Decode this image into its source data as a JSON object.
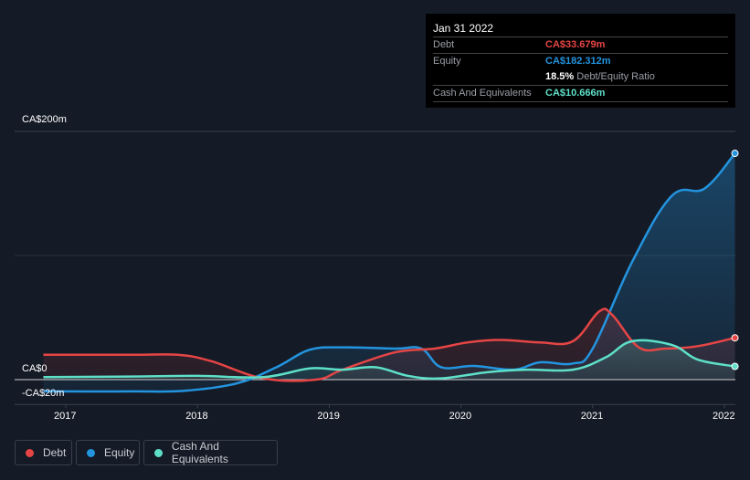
{
  "colors": {
    "debt": "#e64545",
    "equity": "#2394df",
    "cash": "#5ee0c8",
    "grid": "#2a303a",
    "zero": "#cfd3d8"
  },
  "tooltip": {
    "date": "Jan 31 2022",
    "debt_label": "Debt",
    "debt_value": "CA$33.679m",
    "equity_label": "Equity",
    "equity_value": "CA$182.312m",
    "ratio_value": "18.5%",
    "ratio_label": "Debt/Equity Ratio",
    "cash_label": "Cash And Equivalents",
    "cash_value": "CA$10.666m"
  },
  "legend": [
    {
      "label": "Debt",
      "key": "debt"
    },
    {
      "label": "Equity",
      "key": "equity"
    },
    {
      "label": "Cash And Equivalents",
      "key": "cash"
    }
  ],
  "chart_data": {
    "type": "line",
    "title": "",
    "xlabel": "",
    "ylabel": "",
    "ylim": [
      -20,
      200
    ],
    "xlim": [
      2016.83,
      2022.08
    ],
    "y_tick_labels": [
      {
        "value": 200,
        "label": "CA$200m"
      },
      {
        "value": 0,
        "label": "CA$0"
      },
      {
        "value": -20,
        "label": "-CA$20m"
      }
    ],
    "x_ticks": [
      2017,
      2018,
      2019,
      2020,
      2021,
      2022
    ],
    "x_tick_labels": [
      "2017",
      "2018",
      "2019",
      "2020",
      "2021",
      "2022"
    ],
    "series": [
      {
        "name": "Debt",
        "key": "debt",
        "x": [
          2016.83,
          2017.5,
          2017.85,
          2018.1,
          2018.5,
          2018.9,
          2019.1,
          2019.5,
          2019.8,
          2020.05,
          2020.3,
          2020.6,
          2020.85,
          2021.05,
          2021.15,
          2021.35,
          2021.55,
          2021.8,
          2022.08
        ],
        "values": [
          20,
          20,
          20,
          15,
          1,
          0,
          8,
          22,
          25,
          30,
          32,
          30,
          31,
          55,
          52,
          26,
          25,
          27,
          33.679
        ]
      },
      {
        "name": "Equity",
        "key": "equity",
        "x": [
          2016.83,
          2017.5,
          2017.9,
          2018.3,
          2018.6,
          2018.85,
          2019.1,
          2019.5,
          2019.7,
          2019.85,
          2020.1,
          2020.4,
          2020.6,
          2020.85,
          2021.0,
          2021.3,
          2021.6,
          2021.85,
          2022.08
        ],
        "values": [
          -9.5,
          -9.5,
          -9,
          -3,
          10,
          24,
          26,
          25,
          25,
          10,
          11,
          8,
          14,
          13,
          25,
          95,
          148,
          154,
          182.312
        ]
      },
      {
        "name": "Cash And Equivalents",
        "key": "cash",
        "x": [
          2016.83,
          2017.5,
          2018.0,
          2018.5,
          2018.85,
          2019.1,
          2019.35,
          2019.6,
          2019.85,
          2020.2,
          2020.5,
          2020.85,
          2021.1,
          2021.3,
          2021.6,
          2021.8,
          2022.08
        ],
        "values": [
          2,
          2.5,
          3,
          2,
          9,
          8,
          10,
          3,
          1,
          6,
          8,
          8,
          18,
          31,
          28,
          16,
          10.666
        ]
      }
    ]
  }
}
